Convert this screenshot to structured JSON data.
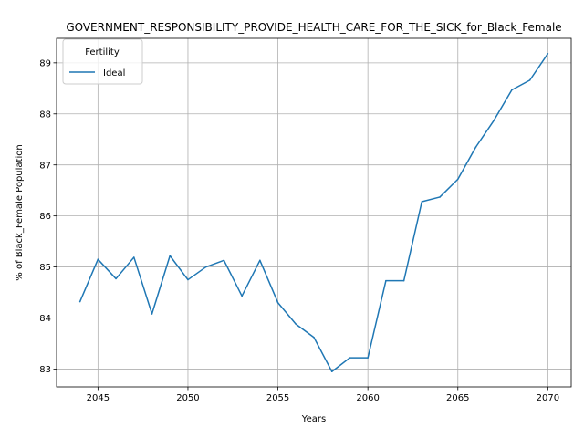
{
  "chart_data": {
    "type": "line",
    "title": "GOVERNMENT_RESPONSIBILITY_PROVIDE_HEALTH_CARE_FOR_THE_SICK_for_Black_Female",
    "xlabel": "Years",
    "ylabel": "% of Black_Female Population",
    "xlim": [
      2042.7,
      2071.3
    ],
    "ylim": [
      82.65,
      89.48
    ],
    "xticks": [
      2045,
      2050,
      2055,
      2060,
      2065,
      2070
    ],
    "yticks": [
      83,
      84,
      85,
      86,
      87,
      88,
      89
    ],
    "grid": true,
    "legend": {
      "title": "Fertility",
      "placement": "upper-left"
    },
    "series": [
      {
        "name": "Ideal",
        "color": "#1f77b4",
        "x": [
          2044,
          2045,
          2046,
          2047,
          2048,
          2049,
          2050,
          2051,
          2052,
          2053,
          2054,
          2055,
          2056,
          2057,
          2058,
          2059,
          2060,
          2061,
          2062,
          2063,
          2064,
          2065,
          2066,
          2067,
          2068,
          2069,
          2070
        ],
        "values": [
          84.32,
          85.15,
          84.77,
          85.19,
          84.08,
          85.22,
          84.75,
          85.0,
          85.13,
          84.43,
          85.13,
          84.3,
          83.88,
          83.62,
          82.95,
          83.22,
          83.22,
          84.73,
          84.73,
          86.28,
          86.37,
          86.72,
          87.35,
          87.87,
          88.47,
          88.66,
          89.18
        ]
      }
    ]
  }
}
